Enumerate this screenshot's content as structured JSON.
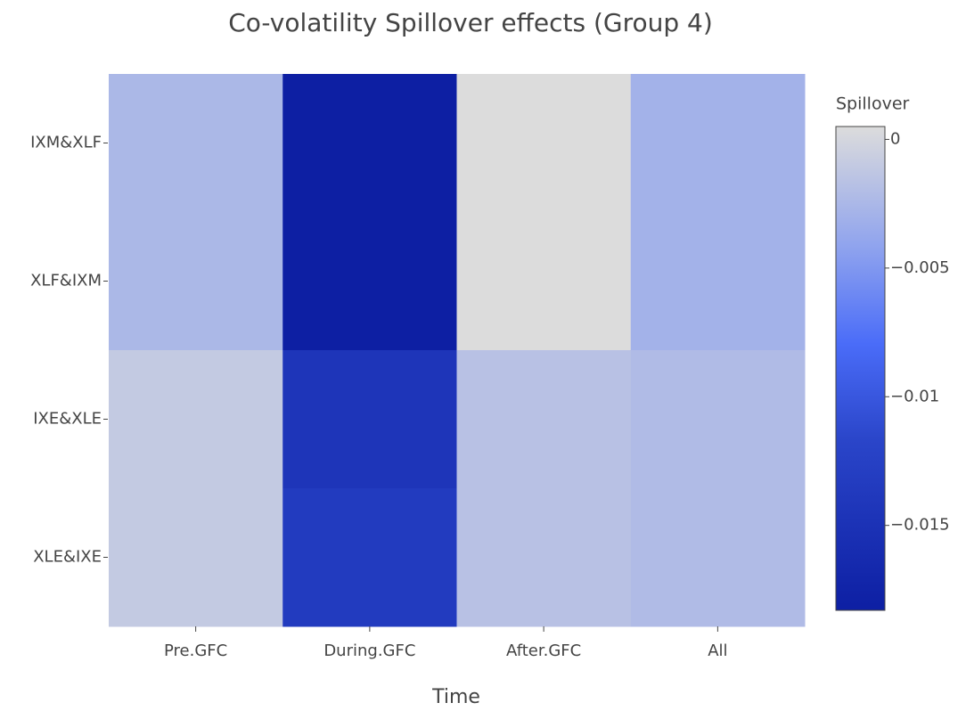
{
  "chart_data": {
    "type": "heatmap",
    "title": "Co-volatility Spillover effects (Group 4)",
    "x_label": "Time",
    "categories": [
      "Pre.GFC",
      "During.GFC",
      "After.GFC",
      "All"
    ],
    "y_categories": [
      "IXM&XLF",
      "XLF&IXM",
      "IXE&XLE",
      "XLE&IXE"
    ],
    "z": [
      [
        -0.0025,
        -0.0183,
        0.0005,
        -0.003
      ],
      [
        -0.0025,
        -0.0183,
        0.0005,
        -0.003
      ],
      [
        -0.001,
        -0.0145,
        -0.0017,
        -0.0022
      ],
      [
        -0.001,
        -0.0135,
        -0.0017,
        -0.0022
      ]
    ],
    "colorbar_title": "Spillover",
    "zlim": [
      -0.0183,
      0.0005
    ],
    "zticks": [
      0,
      {
        "value": -0.005,
        "label": "−0.005"
      },
      {
        "value": -0.01,
        "label": "−0.01"
      },
      {
        "value": -0.015,
        "label": "−0.015"
      }
    ],
    "colorscale": [
      [
        0,
        "#0d1fa3"
      ],
      [
        0.35,
        "#2a45c9"
      ],
      [
        0.55,
        "#4a6cf8"
      ],
      [
        0.75,
        "#8fa3ee"
      ],
      [
        1,
        "#dcdcdc"
      ]
    ]
  }
}
